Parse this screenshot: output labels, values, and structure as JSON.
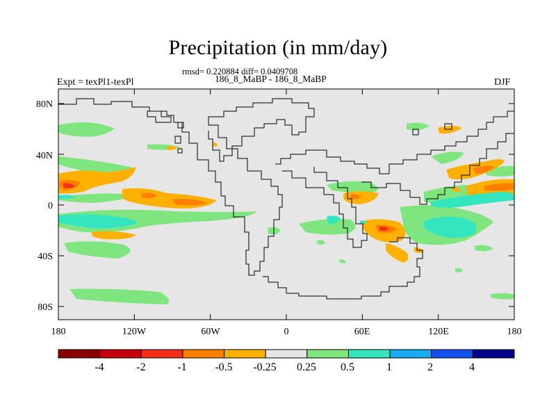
{
  "header": {
    "title": "Precipitation (in mm/day)",
    "stats_line": "rmsd= 0.220884 diff= 0.0409708",
    "runs_line": "186_8_MaBP - 186_8_MaBP",
    "left_label": "Expt = texPl1-texPl",
    "right_label": "DJF"
  },
  "axes": {
    "x_ticks": [
      "180",
      "120W",
      "60W",
      "0",
      "60E",
      "120E",
      "180"
    ],
    "y_ticks": [
      "80N",
      "40N",
      "0",
      "40S",
      "80S"
    ]
  },
  "colorbar": {
    "labels": [
      "-4",
      "-2",
      "-1",
      "-0.5",
      "-0.25",
      "0.25",
      "0.5",
      "1",
      "2",
      "4"
    ],
    "colors": [
      "#8B0000",
      "#C8000F",
      "#F52E18",
      "#FF7F00",
      "#FFB000",
      "#E6E6E6",
      "#7FE67F",
      "#33E6C0",
      "#19AAF0",
      "#1450F0",
      "#00008C"
    ]
  },
  "field": {
    "background_color": "#E6E6E6",
    "contour_color": "#000000"
  }
}
